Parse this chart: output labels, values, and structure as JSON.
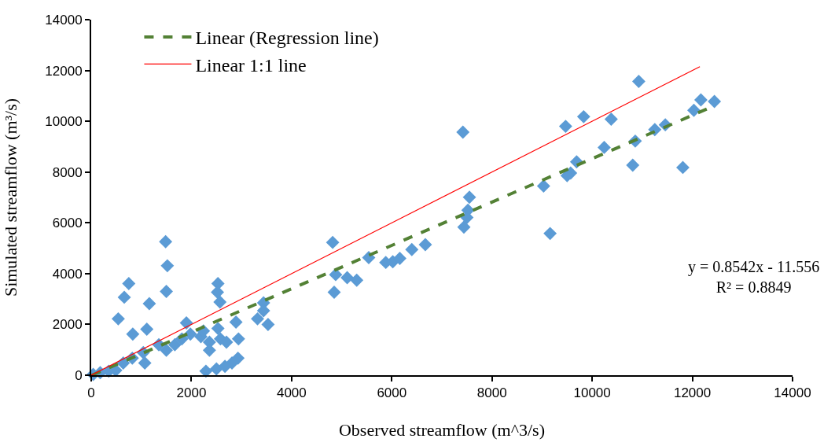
{
  "chart_data": {
    "type": "scatter",
    "xlabel": "Observed streamflow (m^3/s)",
    "ylabel": "Simulated streamflow (m³/s)",
    "xlim": [
      0,
      14000
    ],
    "ylim": [
      0,
      14000
    ],
    "xticks": [
      0,
      2000,
      4000,
      6000,
      8000,
      10000,
      12000,
      14000
    ],
    "yticks": [
      0,
      2000,
      4000,
      6000,
      8000,
      10000,
      12000,
      14000
    ],
    "grid": false,
    "legend": "top left",
    "annotations": [
      "y = 0.8542x - 11.556\nR² = 0.8849"
    ],
    "series": [
      {
        "color": "#5b9bd5",
        "marker": "diamond",
        "x": [
          40,
          180,
          350,
          490,
          1485,
          1520,
          750,
          660,
          1500,
          1160,
          540,
          830,
          1110,
          2530,
          2520,
          2570,
          1900,
          1980,
          2890,
          2940,
          3320,
          3530,
          3440,
          3440,
          2290,
          2500,
          2670,
          2810,
          2930,
          640,
          820,
          1040,
          1070,
          1350,
          1500,
          1670,
          1810,
          2190,
          2360,
          2360,
          2580,
          2700,
          2530,
          2240,
          4820,
          4850,
          4880,
          5110,
          5300,
          5540,
          5880,
          6020,
          6160,
          6400,
          6670,
          7440,
          9160,
          10930,
          9470,
          9830,
          10380,
          12170,
          12440,
          12030,
          11250,
          11460,
          10860,
          10240,
          10810,
          11810,
          9690,
          9570,
          9500,
          9030,
          7420,
          7550,
          7520,
          7500
        ],
        "values": [
          30,
          100,
          160,
          190,
          5260,
          4310,
          3610,
          3070,
          3300,
          2820,
          2220,
          1620,
          1810,
          3610,
          3270,
          2880,
          2060,
          1620,
          2090,
          1430,
          2220,
          2000,
          2850,
          2540,
          160,
          250,
          350,
          480,
          670,
          480,
          670,
          890,
          480,
          1200,
          980,
          1200,
          1430,
          1520,
          1300,
          980,
          1430,
          1300,
          1840,
          1740,
          5230,
          3270,
          3960,
          3840,
          3740,
          4630,
          4440,
          4470,
          4600,
          4950,
          5140,
          5830,
          5580,
          11570,
          9800,
          10180,
          10080,
          10840,
          10780,
          10430,
          9670,
          9860,
          9220,
          8970,
          8270,
          8180,
          8400,
          7960,
          7860,
          7450,
          9570,
          7010,
          6500,
          6210
        ]
      },
      {
        "type": "line",
        "name": "Linear (Regression line)",
        "color": "#538135",
        "line_style": "dashed",
        "x": [
          14,
          12440
        ],
        "values": [
          0,
          10610
        ]
      },
      {
        "type": "line",
        "name": "Linear 1:1 line",
        "color": "#ff0000",
        "line_style": "solid",
        "x": [
          0,
          12150
        ],
        "values": [
          0,
          12150
        ]
      }
    ]
  }
}
